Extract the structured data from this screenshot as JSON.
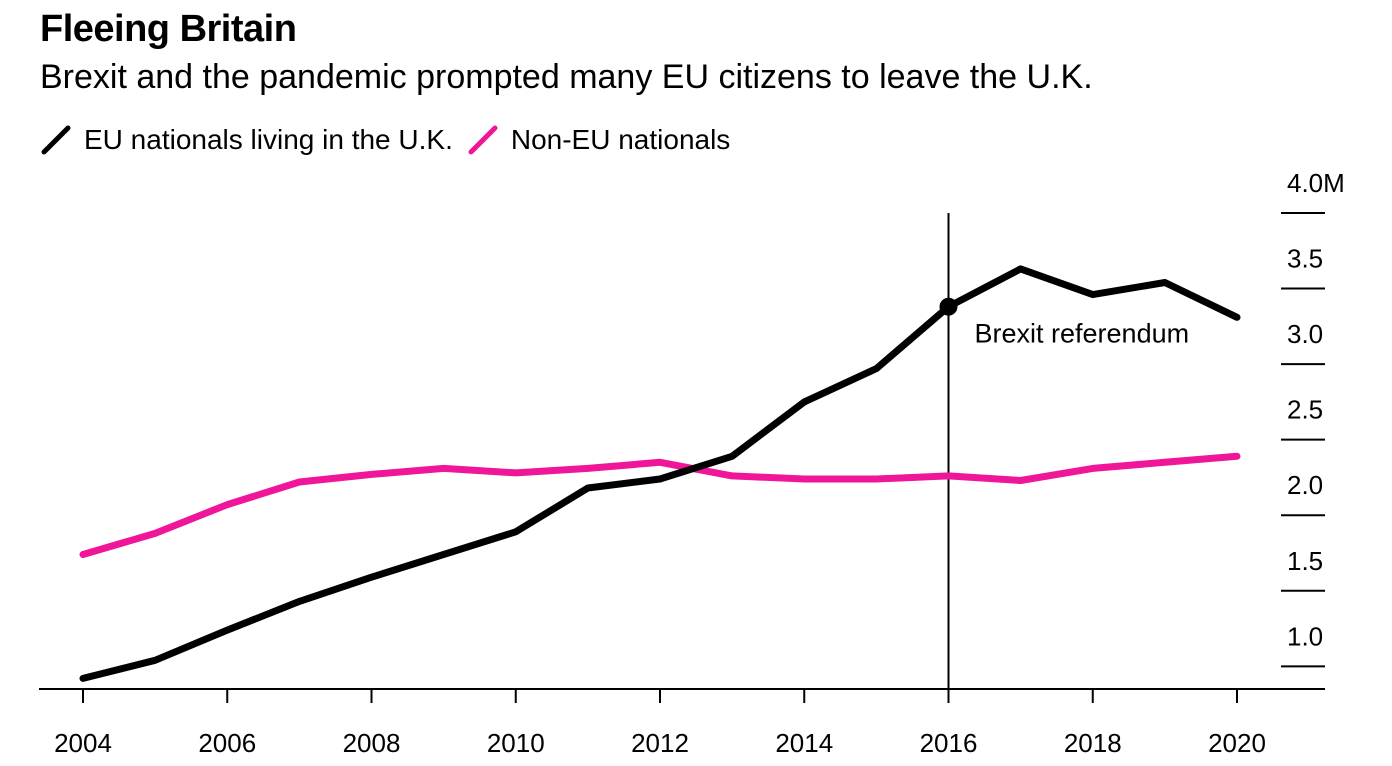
{
  "header": {
    "title": "Fleeing Britain",
    "subtitle": "Brexit and the pandemic prompted many EU citizens to leave the U.K."
  },
  "legend": [
    {
      "label": "EU nationals living in the U.K.",
      "color": "#000000"
    },
    {
      "label": "Non-EU nationals",
      "color": "#f0169a"
    }
  ],
  "chart_data": {
    "type": "line",
    "x": [
      2004,
      2005,
      2006,
      2007,
      2008,
      2009,
      2010,
      2011,
      2012,
      2013,
      2014,
      2015,
      2016,
      2017,
      2018,
      2019,
      2020
    ],
    "series": [
      {
        "name": "EU nationals living in the U.K.",
        "color": "#000000",
        "values": [
          0.92,
          1.04,
          1.24,
          1.43,
          1.59,
          1.74,
          1.89,
          2.18,
          2.24,
          2.39,
          2.75,
          2.97,
          3.38,
          3.63,
          3.46,
          3.54,
          3.31
        ]
      },
      {
        "name": "Non-EU nationals",
        "color": "#f0169a",
        "values": [
          1.74,
          1.88,
          2.07,
          2.22,
          2.27,
          2.31,
          2.28,
          2.31,
          2.35,
          2.26,
          2.24,
          2.24,
          2.26,
          2.23,
          2.31,
          2.35,
          2.39
        ]
      }
    ],
    "x_ticks": [
      "2004",
      "2006",
      "2008",
      "2010",
      "2012",
      "2014",
      "2016",
      "2018",
      "2020"
    ],
    "y_ticks": [
      {
        "value": 1.0,
        "label": "1.0"
      },
      {
        "value": 1.5,
        "label": "1.5"
      },
      {
        "value": 2.0,
        "label": "2.0"
      },
      {
        "value": 2.5,
        "label": "2.5"
      },
      {
        "value": 3.0,
        "label": "3.0"
      },
      {
        "value": 3.5,
        "label": "3.5"
      },
      {
        "value": 4.0,
        "label": "4.0M"
      }
    ],
    "xlim": [
      2004,
      2020
    ],
    "ylim": [
      0.85,
      4.0
    ],
    "annotation": {
      "x": 2016,
      "y": 3.38,
      "label": "Brexit referendum"
    },
    "grid": false,
    "legend_position": "top-left"
  }
}
